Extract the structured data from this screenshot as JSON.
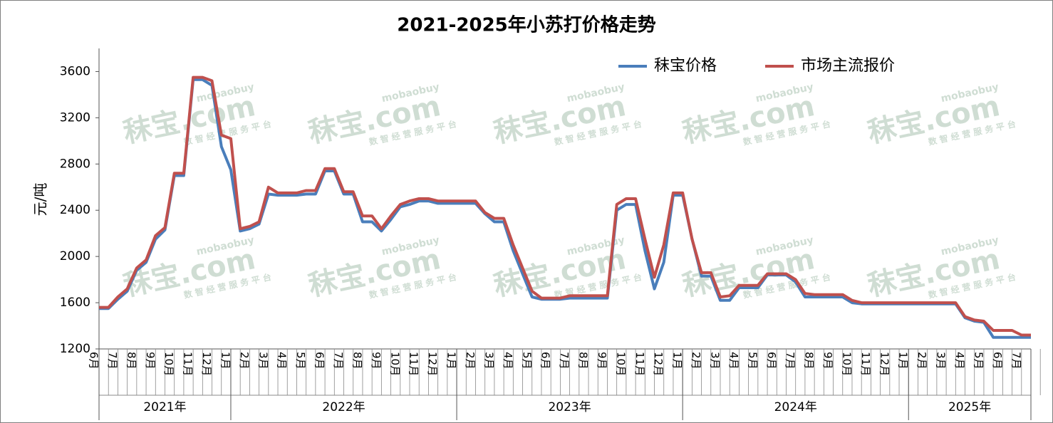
{
  "chart_data": {
    "type": "line",
    "title": "2021-2025年小苏打价格走势",
    "y_label": "元/吨",
    "watermark": [
      "秣宝.com",
      "mobaobuy",
      "数 智 经 营 服 务 平 台"
    ],
    "legend": "top-right",
    "ylim": [
      1200,
      3800
    ],
    "yticks": [
      1200,
      1600,
      2000,
      2400,
      2800,
      3200,
      3600
    ],
    "years": [
      "2021年",
      "2022年",
      "2023年",
      "2024年",
      "2025年"
    ],
    "categories": [
      "6月",
      null,
      "7月",
      null,
      "8月",
      null,
      "9月",
      null,
      "10月",
      null,
      "11月",
      null,
      "12月",
      null,
      "1月",
      null,
      "2月",
      null,
      "3月",
      null,
      "4月",
      null,
      "5月",
      null,
      "6月",
      null,
      "7月",
      null,
      "8月",
      null,
      "9月",
      null,
      "10月",
      null,
      "11月",
      null,
      "12月",
      null,
      "1月",
      null,
      "2月",
      null,
      "3月",
      null,
      "4月",
      null,
      "5月",
      null,
      "6月",
      null,
      "7月",
      null,
      "8月",
      null,
      "9月",
      null,
      "10月",
      null,
      "11月",
      null,
      "12月",
      null,
      "1月",
      null,
      "2月",
      null,
      "3月",
      null,
      "4月",
      null,
      "5月",
      null,
      "6月",
      null,
      "7月",
      null,
      "8月",
      null,
      "9月",
      null,
      "10月",
      null,
      "11月",
      null,
      "12月",
      null,
      "1月",
      null,
      "2月",
      null,
      "3月",
      null,
      "4月",
      null,
      "5月",
      null,
      "6月",
      null,
      "7月",
      null
    ],
    "series": [
      {
        "name": "秣宝价格",
        "color": "#4a7ebb",
        "values": [
          1550,
          1550,
          1630,
          1700,
          1880,
          1950,
          2150,
          2230,
          2700,
          2700,
          3530,
          3530,
          3480,
          2950,
          2750,
          2220,
          2240,
          2280,
          2540,
          2530,
          2530,
          2530,
          2540,
          2540,
          2740,
          2740,
          2540,
          2540,
          2300,
          2300,
          2220,
          2320,
          2430,
          2450,
          2480,
          2480,
          2460,
          2460,
          2460,
          2460,
          2460,
          2370,
          2300,
          2300,
          2050,
          1850,
          1650,
          1630,
          1630,
          1630,
          1640,
          1640,
          1640,
          1640,
          1640,
          2400,
          2450,
          2450,
          2050,
          1720,
          1950,
          2530,
          2530,
          2150,
          1830,
          1830,
          1620,
          1620,
          1730,
          1730,
          1730,
          1840,
          1840,
          1840,
          1780,
          1650,
          1650,
          1650,
          1650,
          1650,
          1600,
          1590,
          1590,
          1590,
          1590,
          1590,
          1590,
          1590,
          1590,
          1590,
          1590,
          1590,
          1470,
          1440,
          1430,
          1300,
          1300,
          1300,
          1300,
          1300
        ]
      },
      {
        "name": "市场主流报价",
        "color": "#c0504d",
        "values": [
          1560,
          1560,
          1650,
          1720,
          1900,
          1970,
          2180,
          2250,
          2720,
          2720,
          3550,
          3550,
          3520,
          3050,
          3020,
          2240,
          2260,
          2300,
          2600,
          2550,
          2550,
          2550,
          2570,
          2570,
          2760,
          2760,
          2560,
          2560,
          2350,
          2350,
          2240,
          2350,
          2450,
          2480,
          2500,
          2500,
          2480,
          2480,
          2480,
          2480,
          2480,
          2380,
          2330,
          2330,
          2100,
          1900,
          1700,
          1640,
          1640,
          1640,
          1660,
          1660,
          1660,
          1660,
          1660,
          2450,
          2500,
          2500,
          2150,
          1820,
          2100,
          2550,
          2550,
          2150,
          1860,
          1860,
          1650,
          1660,
          1750,
          1750,
          1750,
          1850,
          1850,
          1850,
          1800,
          1680,
          1670,
          1670,
          1670,
          1670,
          1620,
          1600,
          1600,
          1600,
          1600,
          1600,
          1600,
          1600,
          1600,
          1600,
          1600,
          1600,
          1480,
          1450,
          1440,
          1360,
          1360,
          1360,
          1320,
          1320
        ]
      }
    ]
  }
}
